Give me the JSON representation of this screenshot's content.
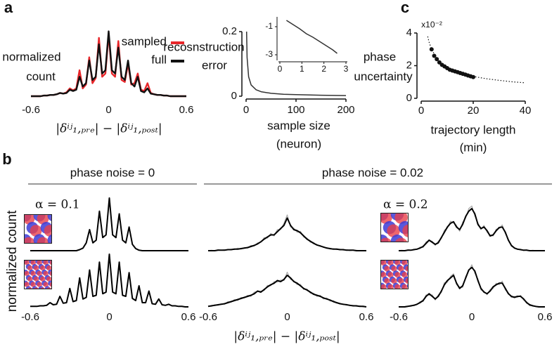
{
  "panel_labels": [
    "a",
    "b",
    "c"
  ],
  "chart_data": [
    {
      "type": "line",
      "ylabel": [
        "normalized",
        "count"
      ],
      "xlabel": [
        "|δⁱʲ₁,ₚᵣₑ| − |δⁱʲ₁,ₚₒₛₜ|"
      ],
      "x": [
        -0.6,
        -0.575,
        -0.55,
        -0.525,
        -0.5,
        -0.475,
        -0.45,
        -0.425,
        -0.4,
        -0.375,
        -0.35,
        -0.325,
        -0.3,
        -0.275,
        -0.25,
        -0.225,
        -0.2,
        -0.175,
        -0.15,
        -0.125,
        -0.1,
        -0.075,
        -0.05,
        -0.025,
        0,
        0.025,
        0.05,
        0.075,
        0.1,
        0.125,
        0.15,
        0.175,
        0.2,
        0.225,
        0.25,
        0.275,
        0.3,
        0.325,
        0.35,
        0.375,
        0.4,
        0.425,
        0.45,
        0.475,
        0.5,
        0.525,
        0.55,
        0.575,
        0.6
      ],
      "xlim": [
        -0.6,
        0.6
      ],
      "xticks": [
        -0.6,
        0,
        0.6
      ],
      "ylim": [
        0,
        1.05
      ],
      "legend": "upper right",
      "series": [
        {
          "name": "sampled",
          "color": "#e8262a",
          "values": [
            0,
            0,
            0,
            0,
            0.01,
            0.01,
            0.02,
            0.02,
            0.03,
            0.05,
            0.04,
            0.06,
            0.12,
            0.09,
            0.12,
            0.4,
            0.12,
            0.18,
            0.6,
            0.2,
            0.28,
            0.9,
            0.3,
            0.35,
            0.95,
            0.35,
            0.3,
            0.85,
            0.25,
            0.22,
            0.5,
            0.18,
            0.2,
            0.35,
            0.1,
            0.08,
            0.2,
            0.05,
            0.03,
            0.02,
            0.02,
            0.01,
            0.01,
            0,
            0,
            0,
            0,
            0,
            0
          ]
        },
        {
          "name": "full",
          "color": "#111111",
          "values": [
            0,
            0,
            0,
            0,
            0.01,
            0.01,
            0.02,
            0.02,
            0.03,
            0.05,
            0.04,
            0.05,
            0.1,
            0.08,
            0.1,
            0.3,
            0.15,
            0.2,
            0.55,
            0.25,
            0.3,
            0.8,
            0.35,
            0.4,
            1.0,
            0.4,
            0.35,
            0.75,
            0.3,
            0.25,
            0.55,
            0.2,
            0.15,
            0.3,
            0.08,
            0.06,
            0.12,
            0.04,
            0.03,
            0.02,
            0.02,
            0.01,
            0.01,
            0,
            0,
            0,
            0,
            0,
            0
          ]
        }
      ]
    },
    {
      "type": "line",
      "ylabel": [
        "recosnstruction",
        "error"
      ],
      "xlabel": [
        "sample size",
        "(neuron)"
      ],
      "x": [
        1,
        2,
        5,
        10,
        20,
        30,
        50,
        75,
        100,
        150,
        200
      ],
      "xlim": [
        0,
        200
      ],
      "xticks": [
        0,
        100,
        200
      ],
      "ylim": [
        0,
        0.2
      ],
      "yticks": [
        0,
        0.2
      ],
      "series": [
        {
          "color": "#333333",
          "values": [
            0.2,
            0.12,
            0.06,
            0.035,
            0.02,
            0.014,
            0.009,
            0.006,
            0.005,
            0.003,
            0.002
          ]
        }
      ],
      "inset": {
        "x": [
          0.3,
          0.6,
          0.9,
          1.2,
          1.5,
          1.8,
          2.1,
          2.4,
          2.6
        ],
        "values": [
          -0.55,
          -0.85,
          -1.15,
          -1.5,
          -1.75,
          -2.05,
          -2.35,
          -2.65,
          -2.9
        ],
        "xlim": [
          0,
          3
        ],
        "xticks": [
          0,
          1,
          2,
          3
        ],
        "ylim": [
          -3.3,
          -0.3
        ],
        "yticks": [
          -1,
          -3
        ]
      }
    },
    {
      "type": "scatter",
      "ylabel": [
        "phase",
        "uncertainty"
      ],
      "xlabel": [
        "trajectory length",
        "(min)"
      ],
      "y_multiplier": "x10⁻²",
      "xlim": [
        0,
        40
      ],
      "xticks": [
        0,
        20,
        40
      ],
      "ylim": [
        0,
        4
      ],
      "yticks": [
        0,
        2,
        4
      ],
      "series": [
        {
          "color": "#111111",
          "x": [
            4,
            5,
            6,
            7,
            8,
            9,
            10,
            11,
            12,
            13,
            14,
            15,
            16,
            17,
            18,
            19,
            20
          ],
          "values": [
            3.0,
            2.6,
            2.4,
            2.2,
            2.05,
            1.95,
            1.85,
            1.75,
            1.7,
            1.65,
            1.6,
            1.55,
            1.5,
            1.45,
            1.4,
            1.35,
            1.3
          ]
        },
        {
          "color": "#111111",
          "style": "dotted",
          "x": [
            2.5,
            3,
            4,
            6,
            8,
            10,
            15,
            20,
            25,
            30,
            35,
            40
          ],
          "values": [
            3.79,
            3.46,
            3,
            2.45,
            2.12,
            1.9,
            1.55,
            1.34,
            1.2,
            1.1,
            1.01,
            0.95
          ]
        }
      ]
    },
    {
      "type": "small-multiples",
      "headers": [
        "phase noise = 0",
        "phase noise = 0.02"
      ],
      "ylabel": "normalized count",
      "xlabel": "|δⁱʲ₁,ₚᵣₑ| − |δⁱʲ₁,ₚₒₛₜ|",
      "x": [
        -0.6,
        -0.575,
        -0.55,
        -0.525,
        -0.5,
        -0.475,
        -0.45,
        -0.425,
        -0.4,
        -0.375,
        -0.35,
        -0.325,
        -0.3,
        -0.275,
        -0.25,
        -0.225,
        -0.2,
        -0.175,
        -0.15,
        -0.125,
        -0.1,
        -0.075,
        -0.05,
        -0.025,
        0,
        0.025,
        0.05,
        0.075,
        0.1,
        0.125,
        0.15,
        0.175,
        0.2,
        0.225,
        0.25,
        0.275,
        0.3,
        0.325,
        0.35,
        0.375,
        0.4,
        0.425,
        0.45,
        0.475,
        0.5,
        0.525,
        0.55,
        0.575,
        0.6
      ],
      "xlim": [
        -0.6,
        0.6
      ],
      "xticks": [
        -0.6,
        0,
        0.6
      ],
      "ylim": [
        0,
        1
      ],
      "panels": [
        {
          "label": "α = 0.1",
          "series": [
            {
              "color": "#000000",
              "values": [
                0,
                0,
                0,
                0,
                0,
                0,
                0,
                0,
                0,
                0,
                0,
                0,
                0,
                0,
                0,
                0.02,
                0.05,
                0.15,
                0.4,
                0.15,
                0.2,
                0.75,
                0.25,
                0.3,
                1.0,
                0.3,
                0.25,
                0.7,
                0.2,
                0.15,
                0.45,
                0.12,
                0.04,
                0.01,
                0,
                0,
                0,
                0,
                0,
                0,
                0,
                0,
                0,
                0,
                0,
                0,
                0,
                0,
                0
              ]
            }
          ]
        },
        {
          "series": [
            {
              "color": "#aaaaaa",
              "values": [
                0,
                0.01,
                0,
                0.02,
                0.01,
                0.02,
                0.02,
                0.03,
                0.02,
                0.05,
                0.03,
                0.06,
                0.05,
                0.1,
                0.09,
                0.15,
                0.16,
                0.25,
                0.24,
                0.33,
                0.28,
                0.4,
                0.4,
                0.52,
                0.68,
                0.45,
                0.43,
                0.35,
                0.37,
                0.26,
                0.24,
                0.16,
                0.16,
                0.1,
                0.1,
                0.06,
                0.06,
                0.03,
                0.04,
                0.02,
                0.03,
                0.01,
                0.02,
                0,
                0.01,
                0.01,
                0,
                0,
                0
              ]
            },
            {
              "color": "#000000",
              "values": [
                0,
                0,
                0,
                0.01,
                0.01,
                0.01,
                0.02,
                0.02,
                0.03,
                0.03,
                0.04,
                0.05,
                0.06,
                0.08,
                0.1,
                0.13,
                0.17,
                0.22,
                0.26,
                0.3,
                0.3,
                0.36,
                0.42,
                0.48,
                0.62,
                0.48,
                0.4,
                0.38,
                0.34,
                0.28,
                0.22,
                0.18,
                0.14,
                0.11,
                0.09,
                0.07,
                0.05,
                0.04,
                0.03,
                0.03,
                0.02,
                0.02,
                0.01,
                0.01,
                0.01,
                0,
                0,
                0,
                0
              ]
            }
          ]
        },
        {
          "label": "α = 0.2",
          "series": [
            {
              "color": "#aaaaaa",
              "values": [
                0,
                0.01,
                0,
                0.02,
                0.01,
                0.03,
                0.02,
                0.07,
                0.06,
                0.17,
                0.19,
                0.18,
                0.1,
                0.18,
                0.23,
                0.39,
                0.43,
                0.56,
                0.53,
                0.48,
                0.37,
                0.54,
                0.62,
                0.8,
                0.85,
                0.66,
                0.53,
                0.4,
                0.48,
                0.35,
                0.3,
                0.28,
                0.41,
                0.42,
                0.49,
                0.32,
                0.22,
                0.08,
                0.06,
                0.02,
                0.03,
                0,
                0.02,
                0,
                0.01,
                0,
                0,
                0,
                0
              ]
            },
            {
              "color": "#000000",
              "values": [
                0,
                0,
                0,
                0.01,
                0.01,
                0.02,
                0.03,
                0.05,
                0.08,
                0.14,
                0.2,
                0.16,
                0.12,
                0.15,
                0.25,
                0.35,
                0.45,
                0.52,
                0.55,
                0.45,
                0.4,
                0.5,
                0.65,
                0.75,
                0.8,
                0.7,
                0.5,
                0.42,
                0.45,
                0.38,
                0.28,
                0.3,
                0.38,
                0.44,
                0.45,
                0.35,
                0.2,
                0.1,
                0.05,
                0.03,
                0.02,
                0.01,
                0.01,
                0,
                0,
                0,
                0,
                0,
                0
              ]
            }
          ]
        },
        {
          "series": [
            {
              "color": "#000000",
              "values": [
                0.01,
                0.01,
                0.01,
                0.02,
                0.02,
                0.03,
                0.08,
                0.04,
                0.05,
                0.2,
                0.07,
                0.08,
                0.35,
                0.1,
                0.12,
                0.55,
                0.15,
                0.18,
                0.7,
                0.2,
                0.22,
                0.85,
                0.25,
                0.28,
                1.0,
                0.28,
                0.25,
                0.85,
                0.22,
                0.2,
                0.65,
                0.16,
                0.12,
                0.4,
                0.08,
                0.08,
                0.3,
                0.06,
                0.05,
                0.15,
                0.04,
                0.03,
                0.05,
                0.02,
                0.02,
                0.01,
                0.01,
                0,
                0
              ]
            }
          ]
        },
        {
          "series": [
            {
              "color": "#aaaaaa",
              "values": [
                0.02,
                0.01,
                0.04,
                0.03,
                0.06,
                0.05,
                0.1,
                0.09,
                0.14,
                0.12,
                0.18,
                0.17,
                0.22,
                0.2,
                0.28,
                0.29,
                0.3,
                0.31,
                0.41,
                0.4,
                0.48,
                0.47,
                0.51,
                0.5,
                0.66,
                0.52,
                0.5,
                0.42,
                0.43,
                0.33,
                0.34,
                0.26,
                0.26,
                0.2,
                0.22,
                0.15,
                0.17,
                0.11,
                0.12,
                0.07,
                0.07,
                0.04,
                0.05,
                0.02,
                0.03,
                0.01,
                0.02,
                0,
                0
              ]
            },
            {
              "color": "#000000",
              "values": [
                0.01,
                0.02,
                0.03,
                0.04,
                0.05,
                0.06,
                0.08,
                0.1,
                0.12,
                0.14,
                0.16,
                0.18,
                0.2,
                0.22,
                0.25,
                0.3,
                0.28,
                0.33,
                0.38,
                0.42,
                0.45,
                0.5,
                0.48,
                0.52,
                0.6,
                0.55,
                0.48,
                0.45,
                0.4,
                0.35,
                0.32,
                0.28,
                0.24,
                0.22,
                0.2,
                0.17,
                0.15,
                0.13,
                0.1,
                0.08,
                0.06,
                0.05,
                0.04,
                0.03,
                0.02,
                0.02,
                0.01,
                0.01,
                0
              ]
            }
          ]
        },
        {
          "series": [
            {
              "color": "#aaaaaa",
              "values": [
                0.01,
                0,
                0.01,
                0.02,
                0.01,
                0.04,
                0.04,
                0.1,
                0.1,
                0.23,
                0.22,
                0.23,
                0.13,
                0.23,
                0.27,
                0.46,
                0.47,
                0.58,
                0.63,
                0.42,
                0.38,
                0.37,
                0.58,
                0.68,
                0.8,
                0.64,
                0.53,
                0.32,
                0.3,
                0.23,
                0.33,
                0.35,
                0.45,
                0.42,
                0.49,
                0.32,
                0.27,
                0.18,
                0.2,
                0.18,
                0.22,
                0.13,
                0.1,
                0.02,
                0.03,
                0,
                0.01,
                0,
                0
              ]
            },
            {
              "color": "#000000",
              "values": [
                0,
                0,
                0,
                0.01,
                0.02,
                0.03,
                0.05,
                0.08,
                0.12,
                0.2,
                0.25,
                0.2,
                0.15,
                0.2,
                0.3,
                0.42,
                0.5,
                0.55,
                0.6,
                0.45,
                0.35,
                0.4,
                0.55,
                0.7,
                0.75,
                0.68,
                0.5,
                0.35,
                0.28,
                0.25,
                0.3,
                0.38,
                0.42,
                0.45,
                0.45,
                0.35,
                0.25,
                0.2,
                0.18,
                0.2,
                0.2,
                0.15,
                0.08,
                0.04,
                0.02,
                0.01,
                0,
                0,
                0
              ]
            }
          ]
        }
      ]
    }
  ]
}
